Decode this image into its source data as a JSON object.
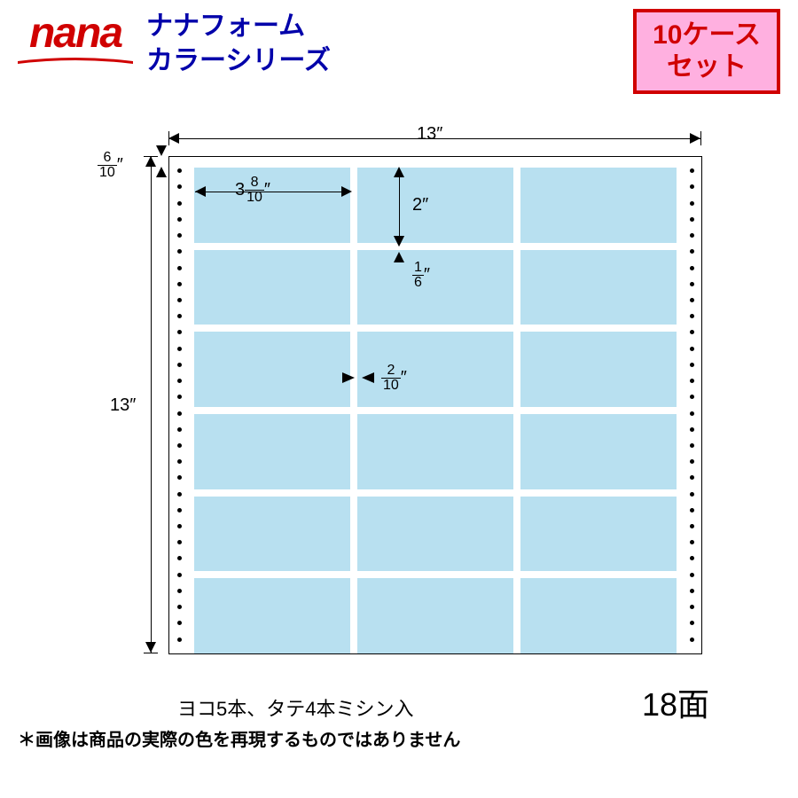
{
  "logo": {
    "text": "nana",
    "color": "#d00000"
  },
  "title": {
    "line1": "ナナフォーム",
    "line2": "カラーシリーズ",
    "color": "#0000aa"
  },
  "badge": {
    "line1": "10ケース",
    "line2": "セット",
    "border": "#d00000",
    "bg": "#ffb0e0",
    "text_color": "#d00000"
  },
  "diagram": {
    "label_color": "#b8e0f0",
    "cols": 3,
    "rows": 6,
    "perf_holes": 30,
    "dims": {
      "sheet_w": "13″",
      "sheet_h": "13″",
      "margin_top": {
        "whole": "",
        "num": "6",
        "den": "10",
        "suffix": "″"
      },
      "label_w": {
        "whole": "3",
        "num": "8",
        "den": "10",
        "suffix": "″"
      },
      "label_h": "2″",
      "gap_v": {
        "whole": "",
        "num": "1",
        "den": "6",
        "suffix": "″"
      },
      "gap_h": {
        "whole": "",
        "num": "2",
        "den": "10",
        "suffix": "″"
      }
    }
  },
  "caption": "ヨコ5本、タテ4本ミシン入",
  "faces": "18面",
  "disclaimer": "＊画像は商品の実際の色を再現するものではありません"
}
